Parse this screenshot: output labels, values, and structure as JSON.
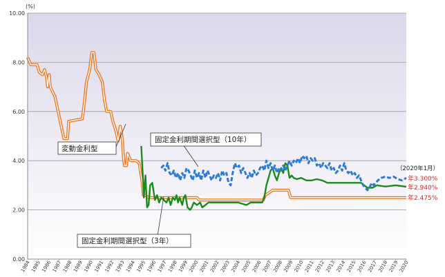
{
  "chart_data": {
    "type": "line",
    "y_unit_label": "(%)",
    "ylim": [
      0,
      10
    ],
    "y_ticks": [
      "0.00",
      "2.00",
      "4.00",
      "6.00",
      "8.00",
      "10.00"
    ],
    "xlim": [
      1984,
      2020
    ],
    "x_ticks": [
      "1984",
      "1985",
      "1986",
      "1987",
      "1988",
      "1989",
      "1990",
      "1991",
      "1992",
      "1993",
      "1994",
      "1995",
      "1996",
      "1997",
      "1998",
      "1999",
      "2000",
      "2001",
      "2002",
      "2003",
      "2004",
      "2005",
      "2006",
      "2007",
      "2008",
      "2009",
      "2010",
      "2011",
      "2012",
      "2013",
      "2014",
      "2015",
      "2016",
      "2017",
      "2018",
      "2019",
      "2020"
    ],
    "grid": true,
    "series": [
      {
        "name": "変動金利型",
        "color": "#f07820",
        "style": "double-orange",
        "points": [
          [
            1984.0,
            8.2
          ],
          [
            1984.3,
            7.9
          ],
          [
            1984.9,
            7.9
          ],
          [
            1985.1,
            7.6
          ],
          [
            1985.4,
            7.5
          ],
          [
            1985.6,
            7.7
          ],
          [
            1985.8,
            7.4
          ],
          [
            1985.9,
            7.0
          ],
          [
            1986.05,
            7.5
          ],
          [
            1986.15,
            7.0
          ],
          [
            1986.6,
            6.6
          ],
          [
            1986.9,
            6.0
          ],
          [
            1987.1,
            5.6
          ],
          [
            1987.3,
            5.2
          ],
          [
            1987.45,
            4.9
          ],
          [
            1987.8,
            4.9
          ],
          [
            1987.9,
            5.6
          ],
          [
            1989.2,
            5.7
          ],
          [
            1989.4,
            6.4
          ],
          [
            1989.6,
            7.2
          ],
          [
            1989.9,
            7.7
          ],
          [
            1990.1,
            8.4
          ],
          [
            1990.3,
            8.4
          ],
          [
            1990.5,
            7.7
          ],
          [
            1990.8,
            7.5
          ],
          [
            1991.1,
            7.2
          ],
          [
            1991.3,
            6.5
          ],
          [
            1991.5,
            6.0
          ],
          [
            1991.9,
            6.0
          ],
          [
            1992.1,
            5.6
          ],
          [
            1992.4,
            5.2
          ],
          [
            1992.6,
            4.8
          ],
          [
            1992.8,
            5.4
          ],
          [
            1993.0,
            4.9
          ],
          [
            1993.1,
            4.2
          ],
          [
            1993.2,
            3.8
          ],
          [
            1993.4,
            3.8
          ],
          [
            1993.5,
            4.3
          ],
          [
            1993.8,
            4.0
          ],
          [
            1994.3,
            4.0
          ],
          [
            1994.6,
            3.9
          ],
          [
            1994.9,
            3.1
          ],
          [
            1995.0,
            2.6
          ],
          [
            1995.2,
            2.6
          ],
          [
            1995.5,
            2.5
          ],
          [
            2000.1,
            2.5
          ],
          [
            2000.3,
            2.4
          ],
          [
            2001.6,
            2.4
          ],
          [
            2006.4,
            2.4
          ],
          [
            2006.6,
            2.6
          ],
          [
            2007.3,
            2.8
          ],
          [
            2008.8,
            2.8
          ],
          [
            2009.0,
            2.5
          ],
          [
            2020.0,
            2.5
          ]
        ]
      },
      {
        "name": "固定金利期間選択型（3年）",
        "color": "#1a8a1a",
        "style": "solid-green",
        "points": [
          [
            1994.8,
            4.6
          ],
          [
            1994.95,
            3.4
          ],
          [
            1995.05,
            2.5
          ],
          [
            1995.2,
            3.4
          ],
          [
            1995.35,
            2.1
          ],
          [
            1995.5,
            2.2
          ],
          [
            1995.65,
            3.0
          ],
          [
            1995.85,
            3.1
          ],
          [
            1996.1,
            2.4
          ],
          [
            1996.3,
            2.6
          ],
          [
            1996.5,
            2.3
          ],
          [
            1996.7,
            2.5
          ],
          [
            1996.95,
            2.4
          ],
          [
            1997.2,
            2.3
          ],
          [
            1997.4,
            2.5
          ],
          [
            1997.6,
            2.2
          ],
          [
            1997.8,
            2.5
          ],
          [
            1998.0,
            2.4
          ],
          [
            1998.15,
            2.6
          ],
          [
            1998.3,
            2.3
          ],
          [
            1998.45,
            2.5
          ],
          [
            1998.7,
            2.2
          ],
          [
            1998.85,
            2.5
          ],
          [
            1999.0,
            2.6
          ],
          [
            1999.2,
            2.1
          ],
          [
            1999.45,
            2.0
          ],
          [
            1999.6,
            2.1
          ],
          [
            1999.8,
            2.3
          ],
          [
            2000.1,
            2.2
          ],
          [
            2000.4,
            2.3
          ],
          [
            2000.6,
            2.1
          ],
          [
            2000.9,
            2.2
          ],
          [
            2001.2,
            2.3
          ],
          [
            2004.0,
            2.3
          ],
          [
            2004.8,
            2.2
          ],
          [
            2005.2,
            2.3
          ],
          [
            2006.3,
            2.3
          ],
          [
            2006.5,
            2.5
          ],
          [
            2006.7,
            3.0
          ],
          [
            2006.9,
            3.3
          ],
          [
            2007.1,
            3.6
          ],
          [
            2007.3,
            3.7
          ],
          [
            2007.5,
            3.4
          ],
          [
            2007.7,
            3.2
          ],
          [
            2007.9,
            3.5
          ],
          [
            2008.1,
            3.7
          ],
          [
            2008.3,
            3.5
          ],
          [
            2008.5,
            3.9
          ],
          [
            2008.7,
            3.8
          ],
          [
            2008.9,
            3.3
          ],
          [
            2009.1,
            3.4
          ],
          [
            2009.3,
            3.3
          ],
          [
            2009.6,
            3.25
          ],
          [
            2010.0,
            3.3
          ],
          [
            2010.5,
            3.2
          ],
          [
            2011.0,
            3.2
          ],
          [
            2011.5,
            3.25
          ],
          [
            2012.0,
            3.2
          ],
          [
            2012.5,
            3.1
          ],
          [
            2015.7,
            3.1
          ],
          [
            2016.0,
            3.0
          ],
          [
            2016.3,
            2.9
          ],
          [
            2016.8,
            2.9
          ],
          [
            2017.2,
            3.0
          ],
          [
            2018.0,
            2.95
          ],
          [
            2019.0,
            3.0
          ],
          [
            2020.0,
            2.94
          ]
        ]
      },
      {
        "name": "固定金利期間選択型（10年）",
        "color": "#2e7bd6",
        "style": "dashed-blue",
        "points": [
          [
            1996.7,
            3.7
          ],
          [
            1996.9,
            3.8
          ],
          [
            1997.1,
            3.6
          ],
          [
            1997.3,
            3.9
          ],
          [
            1997.5,
            3.5
          ],
          [
            1997.7,
            3.4
          ],
          [
            1997.9,
            3.6
          ],
          [
            1998.1,
            3.3
          ],
          [
            1998.3,
            3.5
          ],
          [
            1998.5,
            3.2
          ],
          [
            1998.7,
            3.5
          ],
          [
            1998.9,
            3.3
          ],
          [
            1999.1,
            3.7
          ],
          [
            1999.3,
            3.6
          ],
          [
            1999.5,
            3.4
          ],
          [
            1999.7,
            3.2
          ],
          [
            1999.9,
            3.6
          ],
          [
            2000.1,
            3.3
          ],
          [
            2000.3,
            3.5
          ],
          [
            2000.5,
            3.2
          ],
          [
            2000.7,
            3.6
          ],
          [
            2000.9,
            3.3
          ],
          [
            2001.1,
            3.6
          ],
          [
            2001.3,
            3.4
          ],
          [
            2001.5,
            3.2
          ],
          [
            2001.7,
            3.4
          ],
          [
            2001.9,
            3.3
          ],
          [
            2002.1,
            3.5
          ],
          [
            2002.3,
            3.2
          ],
          [
            2002.5,
            3.6
          ],
          [
            2002.7,
            3.4
          ],
          [
            2002.9,
            3.5
          ],
          [
            2003.1,
            3.1
          ],
          [
            2003.3,
            3.0
          ],
          [
            2003.5,
            3.5
          ],
          [
            2003.7,
            3.9
          ],
          [
            2003.9,
            3.7
          ],
          [
            2004.1,
            3.8
          ],
          [
            2004.3,
            3.5
          ],
          [
            2004.5,
            3.7
          ],
          [
            2004.7,
            3.5
          ],
          [
            2004.9,
            3.3
          ],
          [
            2005.1,
            3.5
          ],
          [
            2005.3,
            3.3
          ],
          [
            2005.5,
            3.6
          ],
          [
            2005.7,
            3.4
          ],
          [
            2005.9,
            3.5
          ],
          [
            2006.1,
            3.7
          ],
          [
            2006.3,
            3.8
          ],
          [
            2006.5,
            3.6
          ],
          [
            2006.7,
            4.0
          ],
          [
            2006.9,
            3.7
          ],
          [
            2007.1,
            3.9
          ],
          [
            2007.3,
            3.6
          ],
          [
            2007.5,
            3.8
          ],
          [
            2007.7,
            3.5
          ],
          [
            2007.9,
            3.7
          ],
          [
            2008.1,
            3.6
          ],
          [
            2008.3,
            3.8
          ],
          [
            2008.5,
            3.6
          ],
          [
            2008.7,
            3.8
          ],
          [
            2008.9,
            4.0
          ],
          [
            2009.1,
            3.8
          ],
          [
            2009.3,
            4.0
          ],
          [
            2009.5,
            3.9
          ],
          [
            2009.7,
            4.1
          ],
          [
            2009.9,
            3.9
          ],
          [
            2010.1,
            4.2
          ],
          [
            2010.3,
            4.1
          ],
          [
            2010.5,
            4.2
          ],
          [
            2010.7,
            3.9
          ],
          [
            2010.9,
            4.1
          ],
          [
            2011.1,
            4.0
          ],
          [
            2011.3,
            4.1
          ],
          [
            2011.5,
            3.8
          ],
          [
            2011.7,
            3.9
          ],
          [
            2011.9,
            3.7
          ],
          [
            2012.1,
            3.9
          ],
          [
            2012.3,
            3.8
          ],
          [
            2012.5,
            3.7
          ],
          [
            2012.7,
            3.9
          ],
          [
            2012.9,
            3.6
          ],
          [
            2013.1,
            3.7
          ],
          [
            2013.3,
            3.5
          ],
          [
            2013.5,
            3.6
          ],
          [
            2013.7,
            3.8
          ],
          [
            2013.9,
            3.6
          ],
          [
            2014.1,
            3.9
          ],
          [
            2014.3,
            3.6
          ],
          [
            2014.5,
            3.5
          ],
          [
            2014.7,
            3.6
          ],
          [
            2014.9,
            3.4
          ],
          [
            2015.1,
            3.5
          ],
          [
            2015.3,
            3.3
          ],
          [
            2015.5,
            3.4
          ],
          [
            2015.7,
            3.2
          ],
          [
            2015.9,
            3.0
          ],
          [
            2016.1,
            2.9
          ],
          [
            2016.3,
            2.8
          ],
          [
            2016.5,
            2.9
          ],
          [
            2016.7,
            3.1
          ],
          [
            2016.9,
            3.0
          ],
          [
            2017.1,
            3.1
          ],
          [
            2017.3,
            3.2
          ],
          [
            2017.6,
            3.3
          ],
          [
            2018.0,
            3.35
          ],
          [
            2018.4,
            3.3
          ],
          [
            2018.8,
            3.35
          ],
          [
            2019.2,
            3.25
          ],
          [
            2019.6,
            3.2
          ],
          [
            2020.0,
            3.3
          ]
        ]
      }
    ],
    "annotations": {
      "hendo": "変動金利型",
      "fixed3": "固定金利期間選択型（3年）",
      "fixed10": "固定金利期間選択型（10年）",
      "date": "（2020年1月）",
      "end_10": "年3.300%",
      "end_3": "年2.940%",
      "end_var": "年2.475%"
    }
  }
}
